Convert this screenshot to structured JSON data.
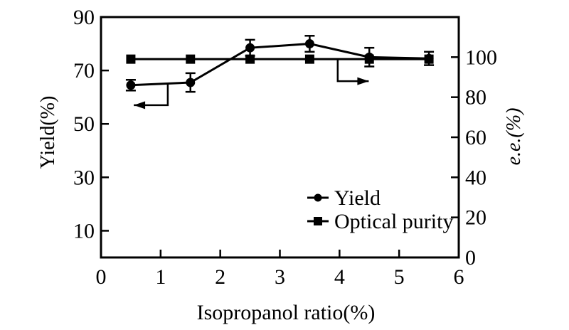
{
  "figure": {
    "background": "#ffffff",
    "foreground": "#000000"
  },
  "chart_data": {
    "type": "line",
    "title": "",
    "xlabel": "Isopropanol ratio(%)",
    "x_axis": {
      "range": [
        0,
        6
      ],
      "ticks": [
        0,
        1,
        2,
        3,
        4,
        5,
        6
      ]
    },
    "left_axis": {
      "label": "Yield(%)",
      "range": [
        0,
        90
      ],
      "ticks": [
        10,
        30,
        50,
        70,
        90
      ]
    },
    "right_axis": {
      "label": "e.e.(%)",
      "range": [
        0,
        120
      ],
      "ticks": [
        0,
        20,
        40,
        60,
        80,
        100
      ],
      "label_style": "italic"
    },
    "grid": false,
    "legend": {
      "position": "lower-right",
      "items": [
        "Yield",
        "Optical purity"
      ]
    },
    "series": [
      {
        "name": "Yield",
        "axis": "left",
        "marker": "circle",
        "x": [
          0.5,
          1.5,
          2.5,
          3.5,
          4.5,
          5.5
        ],
        "y": [
          64.5,
          65.5,
          78.5,
          80,
          75,
          74.5
        ],
        "yerr": [
          2,
          3.5,
          3,
          3,
          3.5,
          2.5
        ]
      },
      {
        "name": "Optical purity",
        "axis": "right",
        "marker": "square",
        "x": [
          0.5,
          1.5,
          2.5,
          3.5,
          4.5,
          5.5
        ],
        "y": [
          99,
          99,
          99,
          99,
          99,
          99
        ],
        "yerr": [
          0,
          0,
          0,
          0,
          0,
          0
        ]
      }
    ],
    "annotations": [
      {
        "type": "elbow-arrow",
        "axis": "left",
        "direction": "left",
        "points": [
          [
            1.12,
            65.3
          ],
          [
            1.12,
            57.0
          ],
          [
            0.55,
            57.0
          ]
        ]
      },
      {
        "type": "elbow-arrow",
        "axis": "right",
        "direction": "right",
        "points": [
          [
            3.97,
            99.0
          ],
          [
            3.97,
            88.0
          ],
          [
            4.49,
            88.0
          ]
        ]
      }
    ]
  }
}
